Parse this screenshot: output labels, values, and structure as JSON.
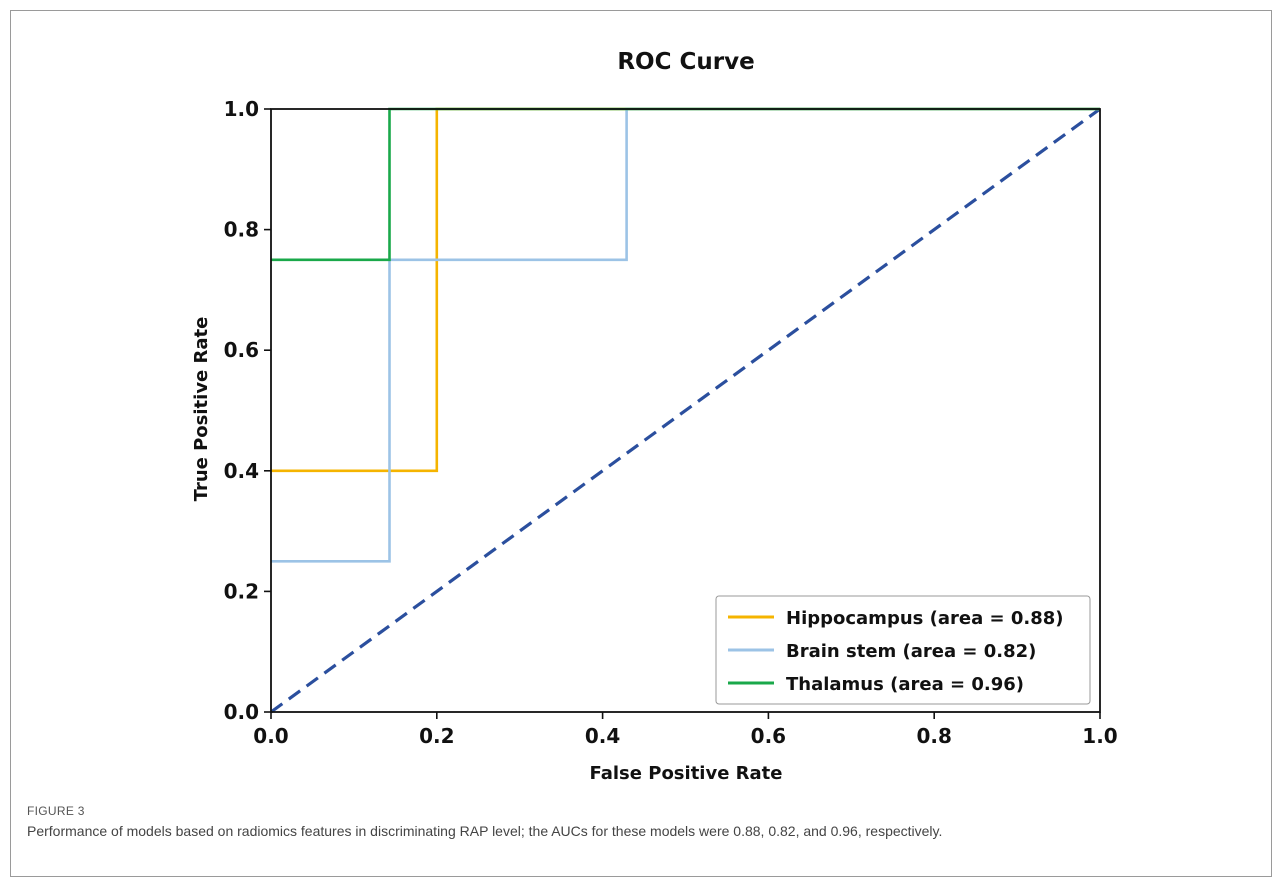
{
  "figure": {
    "label": "FIGURE 3",
    "caption": "Performance of models based on radiomics features in discriminating RAP level; the AUCs for these models were 0.88, 0.82, and 0.96, respectively."
  },
  "chart_data": {
    "type": "line",
    "title": "ROC Curve",
    "xlabel": "False Positive Rate",
    "ylabel": "True Positive Rate",
    "xlim": [
      0,
      1
    ],
    "ylim": [
      0,
      1
    ],
    "xticks": [
      "0.0",
      "0.2",
      "0.4",
      "0.6",
      "0.8",
      "1.0"
    ],
    "yticks": [
      "0.0",
      "0.2",
      "0.4",
      "0.6",
      "0.8",
      "1.0"
    ],
    "grid": false,
    "legend_position": "lower-right",
    "series": [
      {
        "name": "Hippocampus (area = 0.88)",
        "color": "#f5b400",
        "x": [
          0,
          0.2,
          0.2,
          1.0
        ],
        "y": [
          0.4,
          0.4,
          1.0,
          1.0
        ]
      },
      {
        "name": "Brain stem (area = 0.82)",
        "color": "#9cc3e6",
        "x": [
          0,
          0.143,
          0.143,
          0.429,
          0.429,
          1.0
        ],
        "y": [
          0.25,
          0.25,
          0.75,
          0.75,
          1.0,
          1.0
        ]
      },
      {
        "name": "Thalamus (area = 0.96)",
        "color": "#1aa84a",
        "x": [
          0,
          0.143,
          0.143,
          1.0
        ],
        "y": [
          0.75,
          0.75,
          1.0,
          1.0
        ]
      }
    ],
    "reference_line": {
      "x": [
        0,
        1
      ],
      "y": [
        0,
        1
      ],
      "color": "#2b4f9e",
      "style": "dashed"
    }
  }
}
